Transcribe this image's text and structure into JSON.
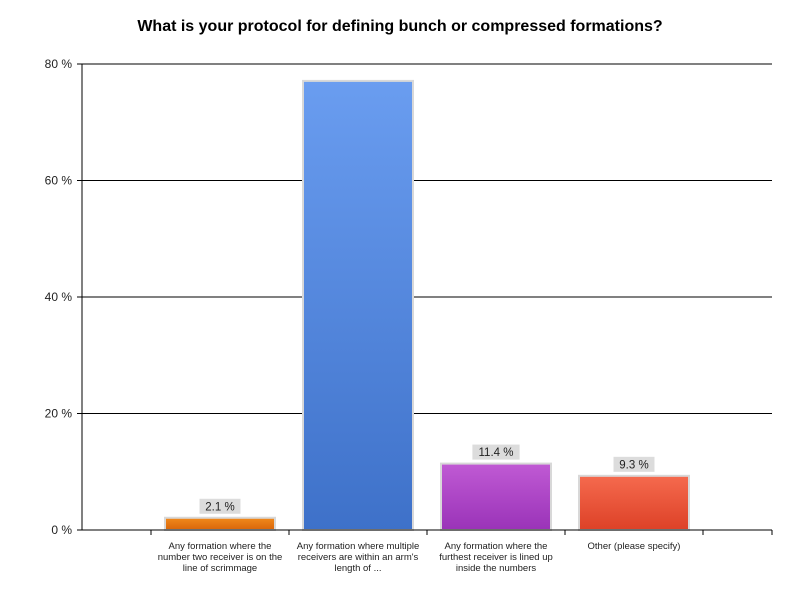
{
  "chart_data": {
    "type": "bar",
    "title": "What is your protocol for defining bunch or compressed formations?",
    "categories": [
      "Any formation where the number two receiver is on the line of scrimmage",
      "Any formation where multiple receivers are within an arm's length of ...",
      "Any formation where the furthest receiver is lined up inside the numbers",
      "Other (please specify)"
    ],
    "values": [
      2.1,
      77.1,
      11.4,
      9.3
    ],
    "data_labels": [
      "2.1 %",
      "",
      "11.4 %",
      "9.3 %"
    ],
    "ylim": [
      0,
      80
    ],
    "yticks": [
      0,
      20,
      40,
      60,
      80
    ],
    "ytick_labels": [
      "0 %",
      "20 %",
      "40 %",
      "60 %",
      "80 %"
    ],
    "xlabel": "",
    "ylabel": "",
    "grid": true,
    "colors": [
      [
        "#f28a1c",
        "#d9650a"
      ],
      [
        "#6a9df0",
        "#3e71c9"
      ],
      [
        "#c05ad4",
        "#9a33b8"
      ],
      [
        "#f56a4e",
        "#dd4127"
      ]
    ]
  }
}
